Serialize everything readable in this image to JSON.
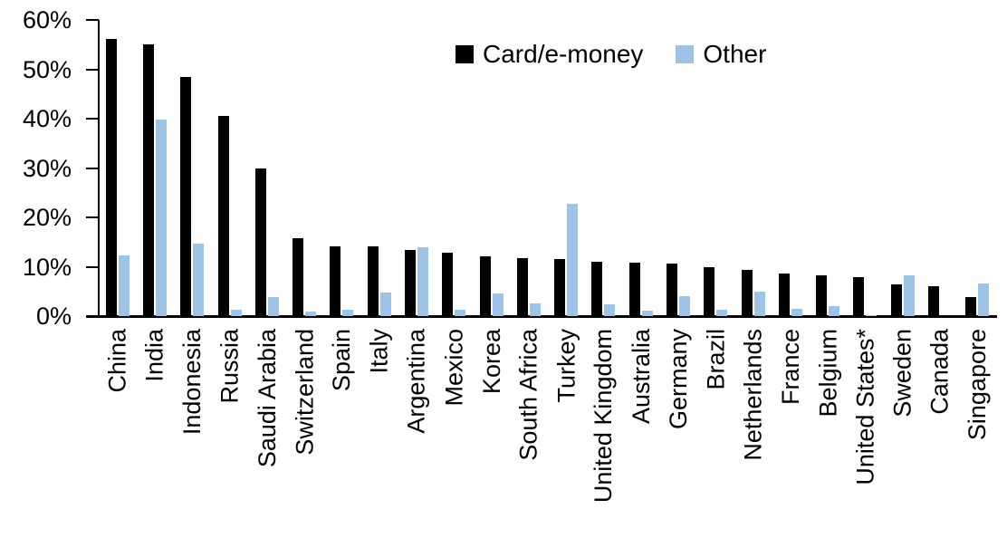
{
  "chart_data": {
    "type": "bar",
    "title": "",
    "xlabel": "",
    "ylabel": "",
    "ylim": [
      0,
      60
    ],
    "ytick_step": 10,
    "ytick_labels": [
      "0%",
      "10%",
      "20%",
      "30%",
      "40%",
      "50%",
      "60%"
    ],
    "grid": false,
    "legend_position": "top-center",
    "categories": [
      "China",
      "India",
      "Indonesia",
      "Russia",
      "Saudi Arabia",
      "Switzerland",
      "Spain",
      "Italy",
      "Argentina",
      "Mexico",
      "Korea",
      "South Africa",
      "Turkey",
      "United Kingdom",
      "Australia",
      "Germany",
      "Brazil",
      "Netherlands",
      "France",
      "Belgium",
      "United States*",
      "Sweden",
      "Canada",
      "Singapore"
    ],
    "series": [
      {
        "name": "Card/e-money",
        "color": "#000000",
        "values": [
          56.2,
          55.0,
          48.4,
          40.6,
          29.9,
          15.7,
          14.2,
          14.1,
          13.4,
          12.9,
          12.2,
          11.7,
          11.6,
          11.1,
          10.9,
          10.6,
          10.0,
          9.3,
          8.7,
          8.2,
          7.9,
          6.5,
          6.0,
          3.9
        ]
      },
      {
        "name": "Other",
        "color": "#9DC3E6",
        "values": [
          12.3,
          39.8,
          14.6,
          1.2,
          3.9,
          0.9,
          1.2,
          4.7,
          13.9,
          1.3,
          4.6,
          2.5,
          22.7,
          2.4,
          1.1,
          4.1,
          1.2,
          4.9,
          1.5,
          2.1,
          0.2,
          8.2,
          0.0,
          6.7
        ]
      }
    ]
  }
}
